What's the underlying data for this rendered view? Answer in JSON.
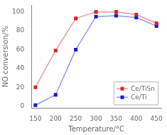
{
  "chart_data": {
    "type": "line",
    "x": [
      150,
      200,
      250,
      300,
      350,
      400,
      450
    ],
    "series": [
      {
        "name": "Ce/TiSn",
        "color": "#dd2222",
        "values": [
          20,
          59,
          93,
          100,
          100,
          97,
          88
        ]
      },
      {
        "name": "Ce/Ti",
        "color": "#1a1acc",
        "values": [
          1,
          12,
          60,
          95,
          96,
          94,
          85
        ]
      }
    ],
    "xlabel": "Temperature/°C",
    "ylabel": "NO conversion/%",
    "xlim": [
      140,
      462
    ],
    "ylim": [
      -2,
      107
    ],
    "xticks": [
      150,
      200,
      250,
      300,
      350,
      400,
      450
    ],
    "yticks": [
      0,
      20,
      40,
      60,
      80,
      100
    ],
    "marker": "square",
    "grid": false,
    "legend": "lower right"
  }
}
